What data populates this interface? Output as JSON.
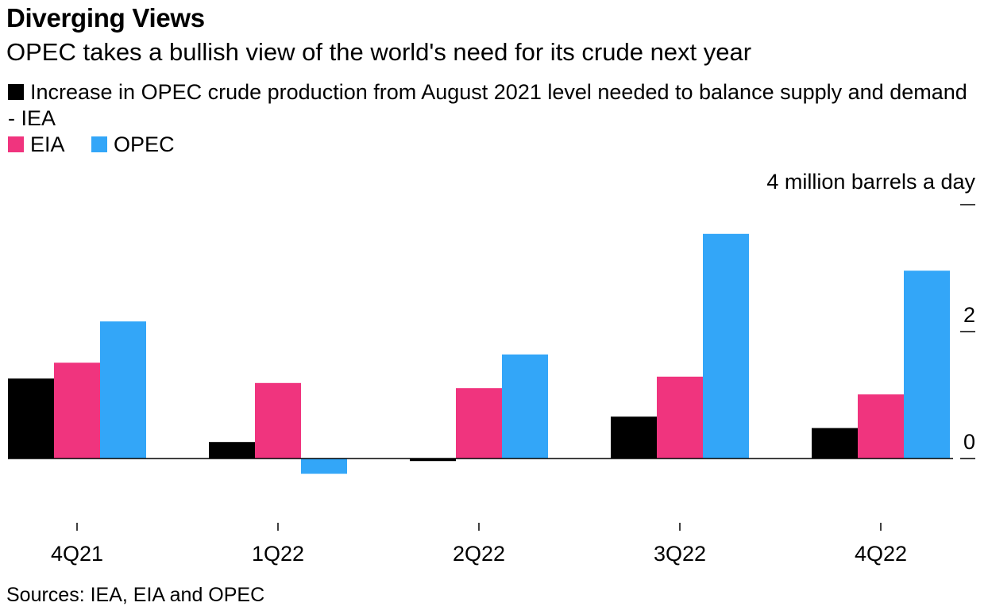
{
  "title": "Diverging Views",
  "subtitle": "OPEC takes a bullish view of the world's need for its crude next year",
  "source": "Sources: IEA, EIA and OPEC",
  "chart_data": {
    "type": "bar",
    "categories": [
      "4Q21",
      "1Q22",
      "2Q22",
      "3Q22",
      "4Q22"
    ],
    "series": [
      {
        "name": "Increase in OPEC crude production from August 2021 level needed to balance supply and demand - IEA",
        "color": "#000000",
        "values": [
          1.26,
          0.26,
          -0.04,
          0.66,
          0.48
        ]
      },
      {
        "name": "EIA",
        "color": "#f0347e",
        "values": [
          1.51,
          1.19,
          1.11,
          1.29,
          1.01
        ]
      },
      {
        "name": "OPEC",
        "color": "#33a6f8",
        "values": [
          2.16,
          -0.24,
          1.64,
          3.54,
          2.96
        ]
      }
    ],
    "ylabel": "4 million barrels a day",
    "yticks": [
      0,
      2,
      4
    ],
    "ytick_labels": [
      "0",
      "2",
      ""
    ],
    "ylim": [
      -0.9,
      4.0
    ],
    "legend_position": "top-left",
    "grid": false
  }
}
